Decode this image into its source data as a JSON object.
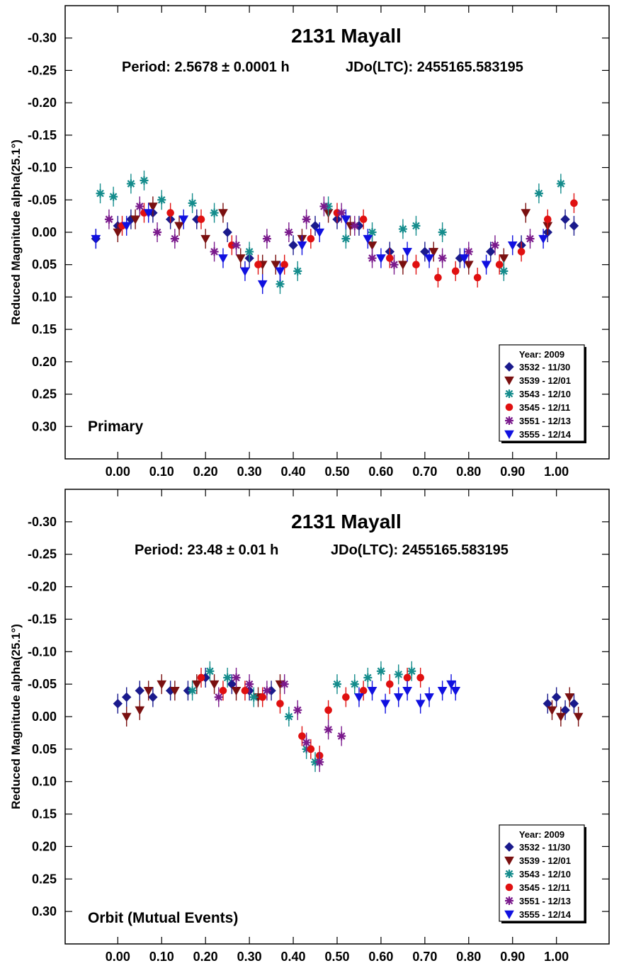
{
  "chart_data": [
    {
      "type": "scatter",
      "title": "2131 Mayall",
      "subtitle_period": "Period: 2.5678 ± 0.0001 h",
      "subtitle_epoch": "JDo(LTC): 2455165.583195",
      "ylabel": "Reduced Magnitude alpha(25.1°)",
      "xlabel": "",
      "annotation": "Primary",
      "xlim": [
        -0.12,
        1.12
      ],
      "ylim": [
        0.35,
        -0.35
      ],
      "y_inverted": true,
      "x_ticks": [
        "0.00",
        "0.10",
        "0.20",
        "0.30",
        "0.40",
        "0.50",
        "0.60",
        "0.70",
        "0.80",
        "0.90",
        "1.00"
      ],
      "y_ticks": [
        "-0.30",
        "-0.25",
        "-0.20",
        "-0.15",
        "-0.10",
        "-0.05",
        "0.00",
        "0.05",
        "0.10",
        "0.15",
        "0.20",
        "0.25",
        "0.30"
      ],
      "legend_title": "Year: 2009",
      "legend_placement": "bottom-right",
      "series": [
        {
          "name": "3532 - 11/30",
          "marker": "diamond",
          "color": "#1a1a8c",
          "x": [
            -0.05,
            0.0,
            0.03,
            0.08,
            0.12,
            0.18,
            0.25,
            0.3,
            0.4,
            0.45,
            0.5,
            0.55,
            0.62,
            0.7,
            0.78,
            0.85,
            0.92,
            0.98,
            1.02,
            1.04
          ],
          "y": [
            0.01,
            -0.01,
            -0.02,
            -0.03,
            -0.02,
            -0.02,
            0.0,
            0.04,
            0.02,
            -0.01,
            -0.02,
            -0.01,
            0.03,
            0.03,
            0.04,
            0.03,
            0.02,
            0.0,
            -0.02,
            -0.01
          ]
        },
        {
          "name": "3539 - 12/01",
          "marker": "triangle-down",
          "color": "#7a1010",
          "x": [
            0.0,
            0.04,
            0.08,
            0.14,
            0.2,
            0.24,
            0.28,
            0.33,
            0.36,
            0.42,
            0.48,
            0.53,
            0.58,
            0.65,
            0.72,
            0.8,
            0.88,
            0.93,
            0.98
          ],
          "y": [
            0.0,
            -0.02,
            -0.04,
            -0.01,
            0.01,
            -0.03,
            0.04,
            0.05,
            0.05,
            0.01,
            -0.03,
            -0.01,
            0.02,
            0.05,
            0.03,
            0.05,
            0.04,
            -0.03,
            -0.01
          ]
        },
        {
          "name": "3543 - 12/10",
          "marker": "asterisk",
          "color": "#148c8c",
          "x": [
            -0.04,
            -0.01,
            0.03,
            0.06,
            0.1,
            0.17,
            0.22,
            0.3,
            0.37,
            0.41,
            0.48,
            0.52,
            0.58,
            0.65,
            0.68,
            0.74,
            0.88,
            0.96,
            1.01
          ],
          "y": [
            -0.06,
            -0.055,
            -0.075,
            -0.08,
            -0.05,
            -0.045,
            -0.03,
            0.03,
            0.08,
            0.06,
            -0.04,
            0.01,
            0.0,
            -0.005,
            -0.01,
            0.0,
            0.06,
            -0.06,
            -0.075
          ]
        },
        {
          "name": "3545 - 12/11",
          "marker": "circle",
          "color": "#e01010",
          "x": [
            0.01,
            0.06,
            0.12,
            0.19,
            0.26,
            0.32,
            0.38,
            0.44,
            0.5,
            0.56,
            0.62,
            0.68,
            0.73,
            0.77,
            0.82,
            0.87,
            0.92,
            0.98,
            1.04
          ],
          "y": [
            -0.01,
            -0.03,
            -0.03,
            -0.02,
            0.02,
            0.05,
            0.05,
            0.01,
            -0.03,
            -0.02,
            0.04,
            0.05,
            0.07,
            0.06,
            0.07,
            0.05,
            0.03,
            -0.02,
            -0.045
          ]
        },
        {
          "name": "3551 - 12/13",
          "marker": "asterisk",
          "color": "#7a1a8c",
          "x": [
            -0.02,
            0.05,
            0.09,
            0.13,
            0.22,
            0.27,
            0.34,
            0.39,
            0.43,
            0.47,
            0.51,
            0.54,
            0.58,
            0.63,
            0.74,
            0.8,
            0.86,
            0.94
          ],
          "y": [
            -0.02,
            -0.04,
            0.0,
            0.01,
            0.03,
            0.02,
            0.01,
            0.0,
            -0.02,
            -0.04,
            -0.03,
            -0.01,
            0.04,
            0.05,
            0.04,
            0.03,
            0.02,
            0.01
          ]
        },
        {
          "name": "3555 - 12/14",
          "marker": "triangle-down",
          "color": "#1010e0",
          "x": [
            -0.05,
            0.02,
            0.07,
            0.15,
            0.24,
            0.29,
            0.33,
            0.37,
            0.42,
            0.46,
            0.52,
            0.57,
            0.6,
            0.66,
            0.71,
            0.79,
            0.84,
            0.9,
            0.97
          ],
          "y": [
            0.01,
            -0.01,
            -0.03,
            -0.02,
            0.04,
            0.06,
            0.08,
            0.06,
            0.02,
            0.0,
            -0.02,
            0.01,
            0.04,
            0.03,
            0.04,
            0.04,
            0.05,
            0.02,
            0.01
          ]
        }
      ]
    },
    {
      "type": "scatter",
      "title": "2131 Mayall",
      "subtitle_period": "Period: 23.48 ± 0.01 h",
      "subtitle_epoch": "JDo(LTC): 2455165.583195",
      "ylabel": "Reduced Magnitude alpha(25.1°)",
      "xlabel": "",
      "annotation": "Orbit (Mutual Events)",
      "xlim": [
        -0.12,
        1.12
      ],
      "ylim": [
        0.35,
        -0.35
      ],
      "y_inverted": true,
      "x_ticks": [
        "0.00",
        "0.10",
        "0.20",
        "0.30",
        "0.40",
        "0.50",
        "0.60",
        "0.70",
        "0.80",
        "0.90",
        "1.00"
      ],
      "y_ticks": [
        "-0.30",
        "-0.25",
        "-0.20",
        "-0.15",
        "-0.10",
        "-0.05",
        "0.00",
        "0.05",
        "0.10",
        "0.15",
        "0.20",
        "0.25",
        "0.30"
      ],
      "legend_title": "Year: 2009",
      "legend_placement": "bottom-right",
      "series": [
        {
          "name": "3532 - 11/30",
          "marker": "diamond",
          "color": "#1a1a8c",
          "x": [
            0.0,
            0.02,
            0.05,
            0.08,
            0.12,
            0.16,
            0.2,
            0.26,
            0.3,
            0.35,
            0.98,
            1.0,
            1.02,
            1.04
          ],
          "y": [
            -0.02,
            -0.03,
            -0.04,
            -0.03,
            -0.04,
            -0.04,
            -0.06,
            -0.05,
            -0.04,
            -0.04,
            -0.02,
            -0.03,
            -0.01,
            -0.02
          ]
        },
        {
          "name": "3539 - 12/01",
          "marker": "triangle-down",
          "color": "#7a1010",
          "x": [
            0.02,
            0.05,
            0.07,
            0.1,
            0.13,
            0.18,
            0.22,
            0.27,
            0.32,
            0.37,
            0.99,
            1.01,
            1.03,
            1.05
          ],
          "y": [
            0.0,
            -0.01,
            -0.04,
            -0.05,
            -0.04,
            -0.05,
            -0.05,
            -0.04,
            -0.03,
            -0.05,
            -0.01,
            0.0,
            -0.03,
            0.0
          ]
        },
        {
          "name": "3543 - 12/10",
          "marker": "asterisk",
          "color": "#148c8c",
          "x": [
            0.17,
            0.21,
            0.25,
            0.31,
            0.39,
            0.43,
            0.45,
            0.5,
            0.54,
            0.57,
            0.6,
            0.64,
            0.67
          ],
          "y": [
            -0.04,
            -0.07,
            -0.06,
            -0.03,
            0.0,
            0.05,
            0.07,
            -0.05,
            -0.05,
            -0.06,
            -0.07,
            -0.065,
            -0.07
          ]
        },
        {
          "name": "3545 - 12/11",
          "marker": "circle",
          "color": "#e01010",
          "x": [
            0.19,
            0.24,
            0.29,
            0.33,
            0.37,
            0.42,
            0.44,
            0.46,
            0.48,
            0.52,
            0.56,
            0.62,
            0.66,
            0.69
          ],
          "y": [
            -0.06,
            -0.04,
            -0.04,
            -0.03,
            -0.02,
            0.03,
            0.05,
            0.06,
            -0.01,
            -0.03,
            -0.04,
            -0.05,
            -0.06,
            -0.06
          ]
        },
        {
          "name": "3551 - 12/13",
          "marker": "asterisk",
          "color": "#7a1a8c",
          "x": [
            0.23,
            0.27,
            0.3,
            0.34,
            0.38,
            0.41,
            0.43,
            0.46,
            0.48,
            0.51
          ],
          "y": [
            -0.03,
            -0.06,
            -0.05,
            -0.04,
            -0.05,
            -0.01,
            0.04,
            0.07,
            0.02,
            0.03
          ]
        },
        {
          "name": "3555 - 12/14",
          "marker": "triangle-down",
          "color": "#1010e0",
          "x": [
            0.55,
            0.58,
            0.61,
            0.64,
            0.66,
            0.69,
            0.71,
            0.74,
            0.76,
            0.77
          ],
          "y": [
            -0.03,
            -0.04,
            -0.02,
            -0.03,
            -0.04,
            -0.02,
            -0.03,
            -0.04,
            -0.05,
            -0.04
          ]
        }
      ]
    }
  ]
}
